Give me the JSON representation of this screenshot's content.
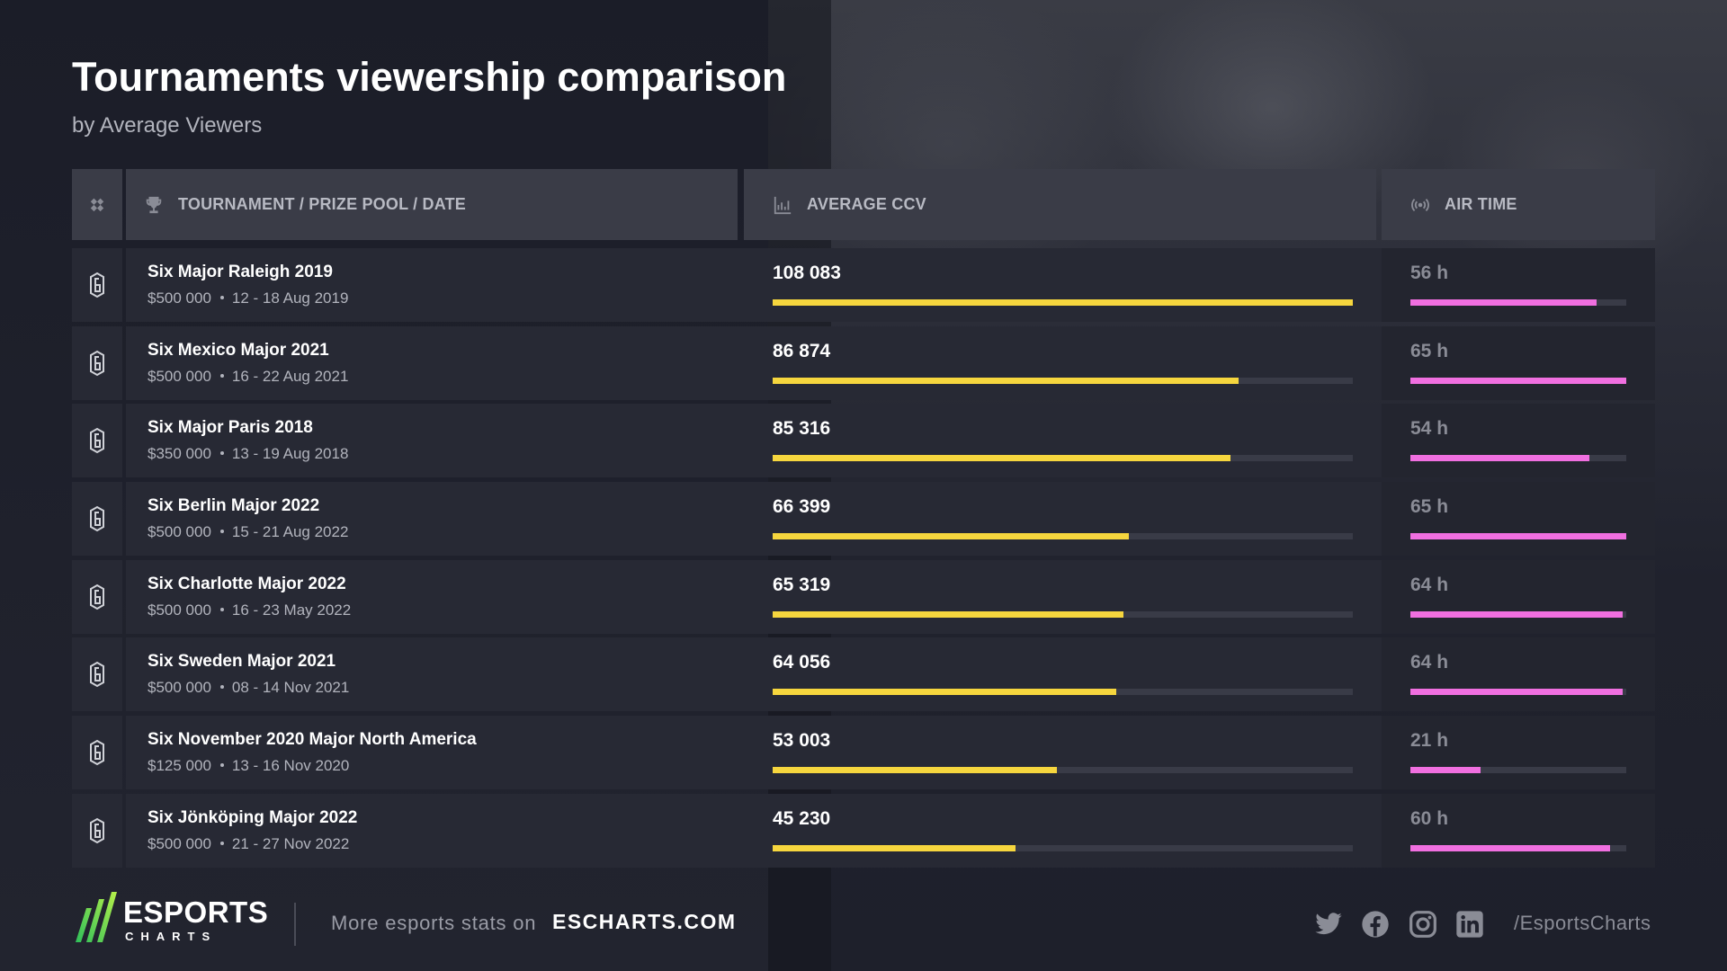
{
  "title": "Tournaments viewership comparison",
  "subtitle": "by Average Viewers",
  "header": {
    "col_tournament": "TOURNAMENT / PRIZE POOL / DATE",
    "col_ccv": "AVERAGE CCV",
    "col_air": "AIR TIME"
  },
  "colors": {
    "ccv_bar": "#f6d63e",
    "air_bar": "#f06fe0",
    "track": "#393b47"
  },
  "chart_data": {
    "type": "bar",
    "title": "Tournaments viewership comparison",
    "subtitle": "by Average Viewers",
    "categories": [
      "Six Major Raleigh 2019",
      "Six Mexico Major 2021",
      "Six Major Paris 2018",
      "Six Berlin Major 2022",
      "Six Charlotte Major 2022",
      "Six Sweden Major 2021",
      "Six November 2020 Major North America",
      "Six Jönköping Major 2022"
    ],
    "series": [
      {
        "name": "AVERAGE CCV",
        "values": [
          108083,
          86874,
          85316,
          66399,
          65319,
          64056,
          53003,
          45230
        ]
      },
      {
        "name": "AIR TIME",
        "values": [
          56,
          65,
          54,
          65,
          64,
          64,
          21,
          60
        ]
      }
    ],
    "rows": [
      {
        "name": "Six Major Raleigh 2019",
        "prize": "$500 000",
        "date": "12 - 18 Aug 2019",
        "ccv": 108083,
        "ccv_label": "108 083",
        "air": 56,
        "air_label": "56 h"
      },
      {
        "name": "Six Mexico Major 2021",
        "prize": "$500 000",
        "date": "16 - 22 Aug 2021",
        "ccv": 86874,
        "ccv_label": "86 874",
        "air": 65,
        "air_label": "65 h"
      },
      {
        "name": "Six Major Paris 2018",
        "prize": "$350 000",
        "date": "13 - 19 Aug 2018",
        "ccv": 85316,
        "ccv_label": "85 316",
        "air": 54,
        "air_label": "54 h"
      },
      {
        "name": "Six Berlin Major 2022",
        "prize": "$500 000",
        "date": "15 - 21 Aug 2022",
        "ccv": 66399,
        "ccv_label": "66 399",
        "air": 65,
        "air_label": "65 h"
      },
      {
        "name": "Six Charlotte Major 2022",
        "prize": "$500 000",
        "date": "16 - 23 May 2022",
        "ccv": 65319,
        "ccv_label": "65 319",
        "air": 64,
        "air_label": "64 h"
      },
      {
        "name": "Six Sweden Major 2021",
        "prize": "$500 000",
        "date": "08 - 14 Nov 2021",
        "ccv": 64056,
        "ccv_label": "64 056",
        "air": 64,
        "air_label": "64 h"
      },
      {
        "name": "Six November 2020 Major North America",
        "prize": "$125 000",
        "date": "13 - 16 Nov 2020",
        "ccv": 53003,
        "ccv_label": "53 003",
        "air": 21,
        "air_label": "21 h"
      },
      {
        "name": "Six Jönköping Major 2022",
        "prize": "$500 000",
        "date": "21 - 27 Nov 2022",
        "ccv": 45230,
        "ccv_label": "45 230",
        "air": 60,
        "air_label": "60 h"
      }
    ],
    "ccv_max": 108083,
    "air_max": 65
  },
  "footer": {
    "logo_main": "ESPORTS",
    "logo_sub": "CHARTS",
    "more_text": "More esports stats on",
    "site": "ESCHARTS.COM",
    "socials": [
      "twitter-icon",
      "facebook-icon",
      "instagram-icon",
      "linkedin-icon"
    ],
    "handle": "/EsportsCharts"
  }
}
